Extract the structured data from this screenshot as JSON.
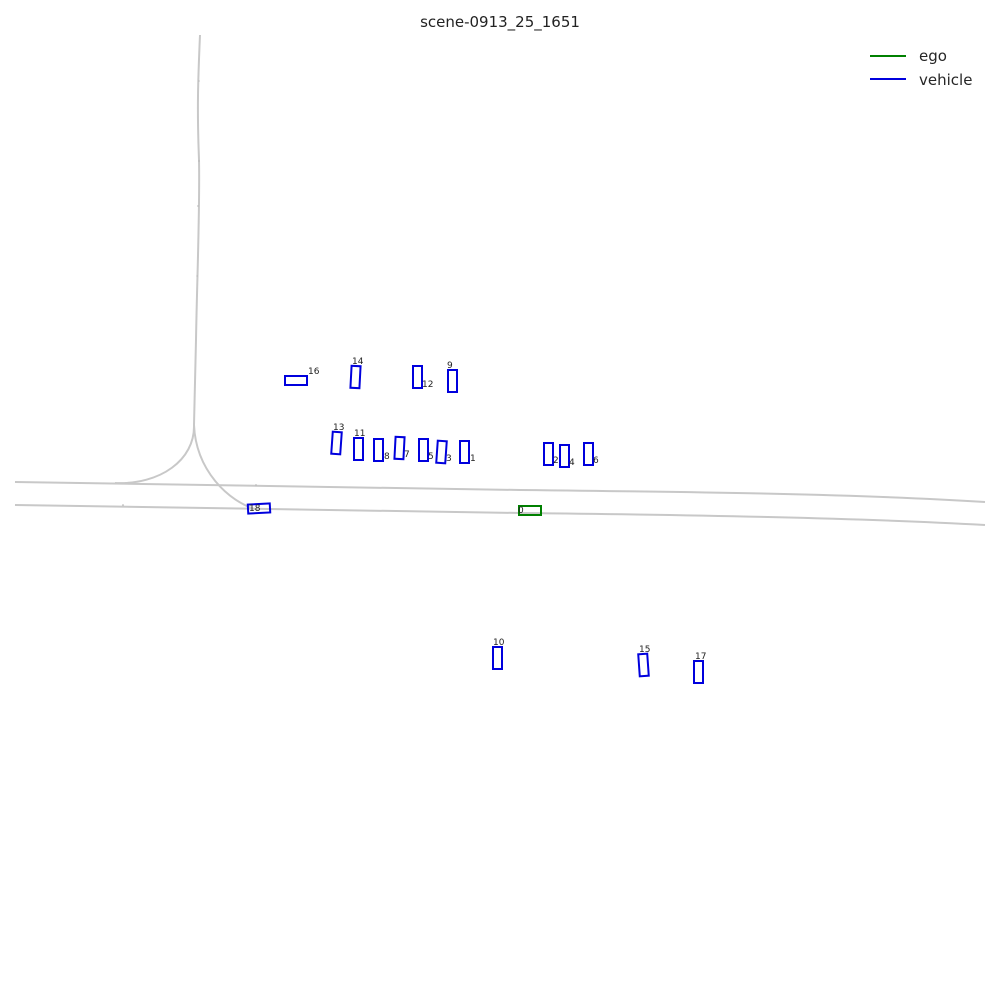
{
  "title": "scene-0913_25_1651",
  "colors": {
    "ego": "#008000",
    "vehicle": "#0000dd",
    "road": "#c8c8c8"
  },
  "legend": [
    {
      "label": "ego",
      "category": "ego"
    },
    {
      "label": "vehicle",
      "category": "vehicle"
    }
  ],
  "objects": [
    {
      "id": "0",
      "category": "ego"
    },
    {
      "id": "1",
      "category": "vehicle"
    },
    {
      "id": "2",
      "category": "vehicle"
    },
    {
      "id": "3",
      "category": "vehicle"
    },
    {
      "id": "4",
      "category": "vehicle"
    },
    {
      "id": "5",
      "category": "vehicle"
    },
    {
      "id": "6",
      "category": "vehicle"
    },
    {
      "id": "7",
      "category": "vehicle"
    },
    {
      "id": "8",
      "category": "vehicle"
    },
    {
      "id": "9",
      "category": "vehicle"
    },
    {
      "id": "10",
      "category": "vehicle"
    },
    {
      "id": "11",
      "category": "vehicle"
    },
    {
      "id": "12",
      "category": "vehicle"
    },
    {
      "id": "13",
      "category": "vehicle"
    },
    {
      "id": "14",
      "category": "vehicle"
    },
    {
      "id": "15",
      "category": "vehicle"
    },
    {
      "id": "16",
      "category": "vehicle"
    },
    {
      "id": "17",
      "category": "vehicle"
    },
    {
      "id": "18",
      "category": "vehicle"
    }
  ]
}
